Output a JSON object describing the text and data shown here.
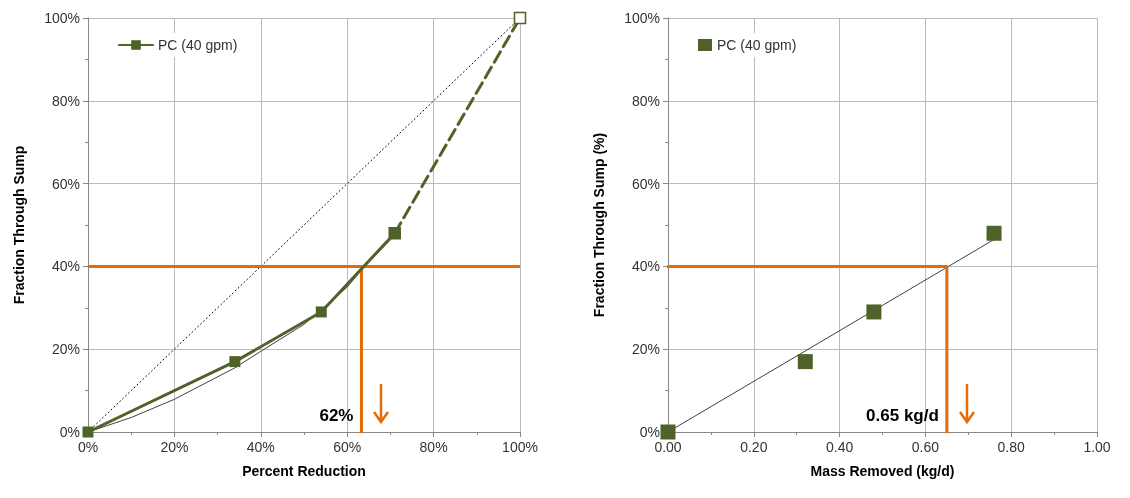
{
  "chart_data": [
    {
      "type": "line",
      "xlabel": "Percent Reduction",
      "ylabel": "Fraction Through Sump",
      "xlim": [
        0,
        100
      ],
      "xticks": [
        {
          "value": 0,
          "label": "0%"
        },
        {
          "value": 20,
          "label": "20%"
        },
        {
          "value": 40,
          "label": "40%"
        },
        {
          "value": 60,
          "label": "60%"
        },
        {
          "value": 80,
          "label": "80%"
        },
        {
          "value": 100,
          "label": "100%"
        }
      ],
      "ylim": [
        0,
        100
      ],
      "yticks": [
        {
          "value": 0,
          "label": "0%"
        },
        {
          "value": 20,
          "label": "20%"
        },
        {
          "value": 40,
          "label": "40%"
        },
        {
          "value": 60,
          "label": "60%"
        },
        {
          "value": 80,
          "label": "80%"
        },
        {
          "value": 100,
          "label": "100%"
        }
      ],
      "grid": true,
      "legend": "top left",
      "series": [
        {
          "color": "#000000",
          "line_style": "dotted",
          "marker": "none",
          "x": [
            0,
            100
          ],
          "values": [
            0,
            100
          ]
        },
        {
          "color": "#404040",
          "line_style": "solid",
          "marker": "none",
          "x": [
            0,
            10,
            20,
            34,
            40,
            50,
            60,
            64,
            71
          ],
          "values": [
            0,
            3.5,
            7.9,
            15.5,
            19.5,
            26,
            35,
            40,
            47.5
          ]
        },
        {
          "color": "#4f6228",
          "line_style": "dashed",
          "marker": "square",
          "x": [
            71,
            100
          ],
          "values": [
            48,
            100
          ]
        },
        {
          "name": "PC (40 gpm)",
          "color": "#4f6228",
          "line_style": "solid",
          "marker": "square",
          "x": [
            0,
            34,
            54,
            71
          ],
          "values": [
            0,
            17,
            29,
            48
          ]
        },
        {
          "color": "#e36c09",
          "line_style": "solid",
          "marker": "none",
          "x": [
            63.3,
            63.3
          ],
          "values": [
            40,
            0
          ]
        }
      ],
      "ref_lines": [
        {
          "axis": "y",
          "value": 40,
          "color": "#e36c09"
        }
      ],
      "annotations": [
        {
          "text": "62%",
          "x": 63.3,
          "y": 0
        }
      ]
    },
    {
      "type": "scatter",
      "xlabel": "Mass Removed (kg/d)",
      "ylabel": "Fraction Through Sump (%)",
      "xlim": [
        0,
        1
      ],
      "xticks": [
        {
          "value": 0,
          "label": "0.00"
        },
        {
          "value": 0.2,
          "label": "0.20"
        },
        {
          "value": 0.4,
          "label": "0.40"
        },
        {
          "value": 0.6,
          "label": "0.60"
        },
        {
          "value": 0.8,
          "label": "0.80"
        },
        {
          "value": 1,
          "label": "1.00"
        }
      ],
      "ylim": [
        0,
        100
      ],
      "yticks": [
        {
          "value": 0,
          "label": "0%"
        },
        {
          "value": 20,
          "label": "20%"
        },
        {
          "value": 40,
          "label": "40%"
        },
        {
          "value": 60,
          "label": "60%"
        },
        {
          "value": 80,
          "label": "80%"
        },
        {
          "value": 100,
          "label": "100%"
        }
      ],
      "grid": true,
      "legend": "top left",
      "series": [
        {
          "type": "line",
          "color": "#404040",
          "line_style": "solid",
          "marker": "none",
          "x": [
            0,
            0.76
          ],
          "values": [
            0,
            46.5
          ]
        },
        {
          "name": "PC (40 gpm)",
          "color": "#4f6228",
          "marker": "square",
          "x": [
            0,
            0.32,
            0.48,
            0.76
          ],
          "values": [
            0,
            17,
            29,
            48
          ]
        },
        {
          "type": "line",
          "color": "#e36c09",
          "line_style": "solid",
          "marker": "none",
          "x": [
            0,
            0.65,
            0.65
          ],
          "values": [
            40,
            40,
            0
          ]
        }
      ],
      "annotations": [
        {
          "text": "0.65 kg/d",
          "x": 0.65,
          "y": 0
        }
      ]
    }
  ]
}
